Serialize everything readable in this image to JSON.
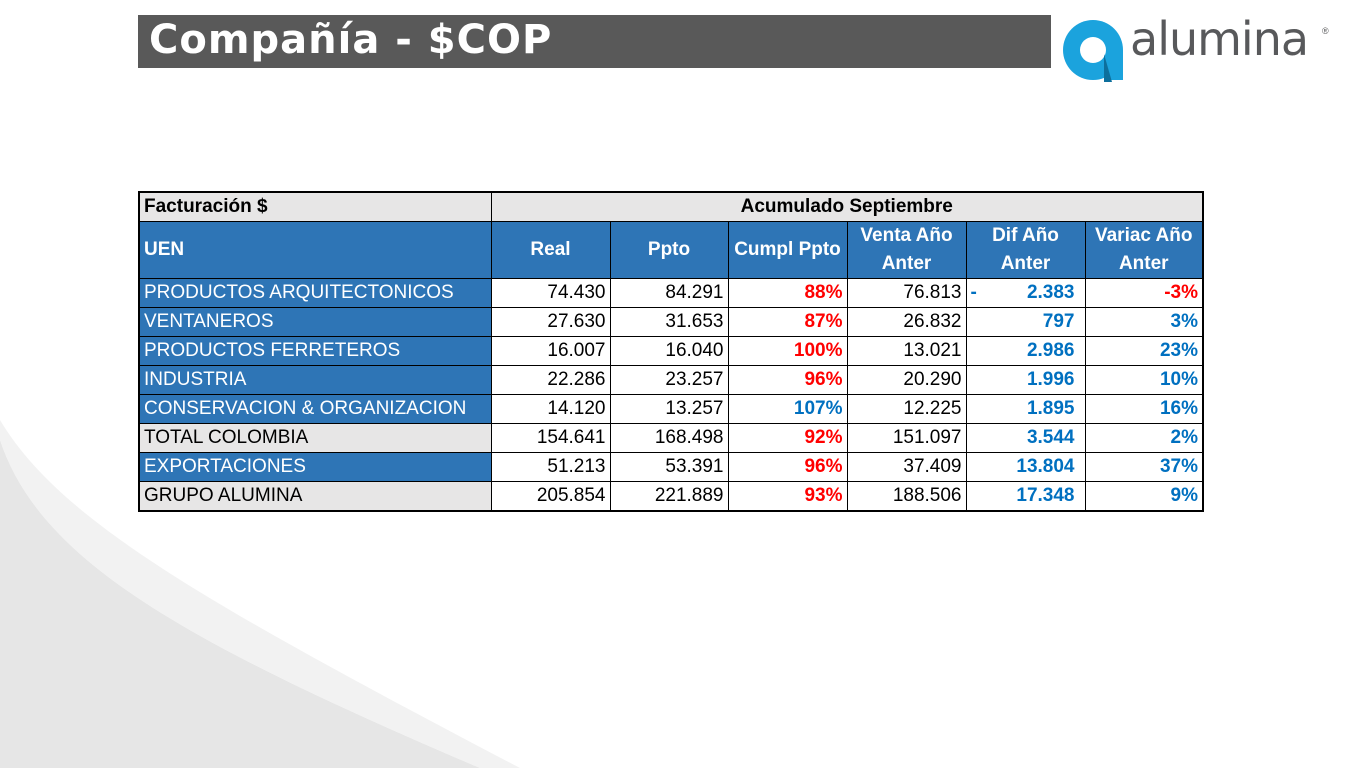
{
  "title": "Compañía - $COP",
  "logo": {
    "word": "alumina",
    "reg": "®",
    "brand_color": "#1ba3dd",
    "text_color": "#58595b"
  },
  "table": {
    "top_left": "Facturación $",
    "period": "Acumulado Septiembre",
    "headers": [
      "UEN",
      "Real",
      "Ppto",
      "Cumpl Ppto",
      "Venta Año Anter",
      "Dif Año Anter",
      "Variac Año Anter"
    ],
    "rows": [
      {
        "uen": "PRODUCTOS ARQUITECTONICOS",
        "real": "74.430",
        "ppto": "84.291",
        "cumpl": "88%",
        "venta": "76.813",
        "dif_sign": "-",
        "dif": "2.383",
        "variac": "-3%",
        "style": "blue",
        "cumpl_color": "red",
        "variac_color": "red"
      },
      {
        "uen": "VENTANEROS",
        "real": "27.630",
        "ppto": "31.653",
        "cumpl": "87%",
        "venta": "26.832",
        "dif_sign": "",
        "dif": "797",
        "variac": "3%",
        "style": "blue",
        "cumpl_color": "red",
        "variac_color": "blue"
      },
      {
        "uen": "PRODUCTOS FERRETEROS",
        "real": "16.007",
        "ppto": "16.040",
        "cumpl": "100%",
        "venta": "13.021",
        "dif_sign": "",
        "dif": "2.986",
        "variac": "23%",
        "style": "blue",
        "cumpl_color": "red",
        "variac_color": "blue"
      },
      {
        "uen": "INDUSTRIA",
        "real": "22.286",
        "ppto": "23.257",
        "cumpl": "96%",
        "venta": "20.290",
        "dif_sign": "",
        "dif": "1.996",
        "variac": "10%",
        "style": "blue",
        "cumpl_color": "red",
        "variac_color": "blue"
      },
      {
        "uen": "CONSERVACION & ORGANIZACION",
        "real": "14.120",
        "ppto": "13.257",
        "cumpl": "107%",
        "venta": "12.225",
        "dif_sign": "",
        "dif": "1.895",
        "variac": "16%",
        "style": "blue",
        "cumpl_color": "blue",
        "variac_color": "blue"
      },
      {
        "uen": "TOTAL COLOMBIA",
        "real": "154.641",
        "ppto": "168.498",
        "cumpl": "92%",
        "venta": "151.097",
        "dif_sign": "",
        "dif": "3.544",
        "variac": "2%",
        "style": "grey",
        "cumpl_color": "red",
        "variac_color": "blue"
      },
      {
        "uen": "EXPORTACIONES",
        "real": "51.213",
        "ppto": "53.391",
        "cumpl": "96%",
        "venta": "37.409",
        "dif_sign": "",
        "dif": "13.804",
        "variac": "37%",
        "style": "blue",
        "cumpl_color": "red",
        "variac_color": "blue"
      },
      {
        "uen": "GRUPO ALUMINA",
        "real": "205.854",
        "ppto": "221.889",
        "cumpl": "93%",
        "venta": "188.506",
        "dif_sign": "",
        "dif": "17.348",
        "variac": "9%",
        "style": "grey",
        "cumpl_color": "red",
        "variac_color": "blue"
      }
    ]
  }
}
